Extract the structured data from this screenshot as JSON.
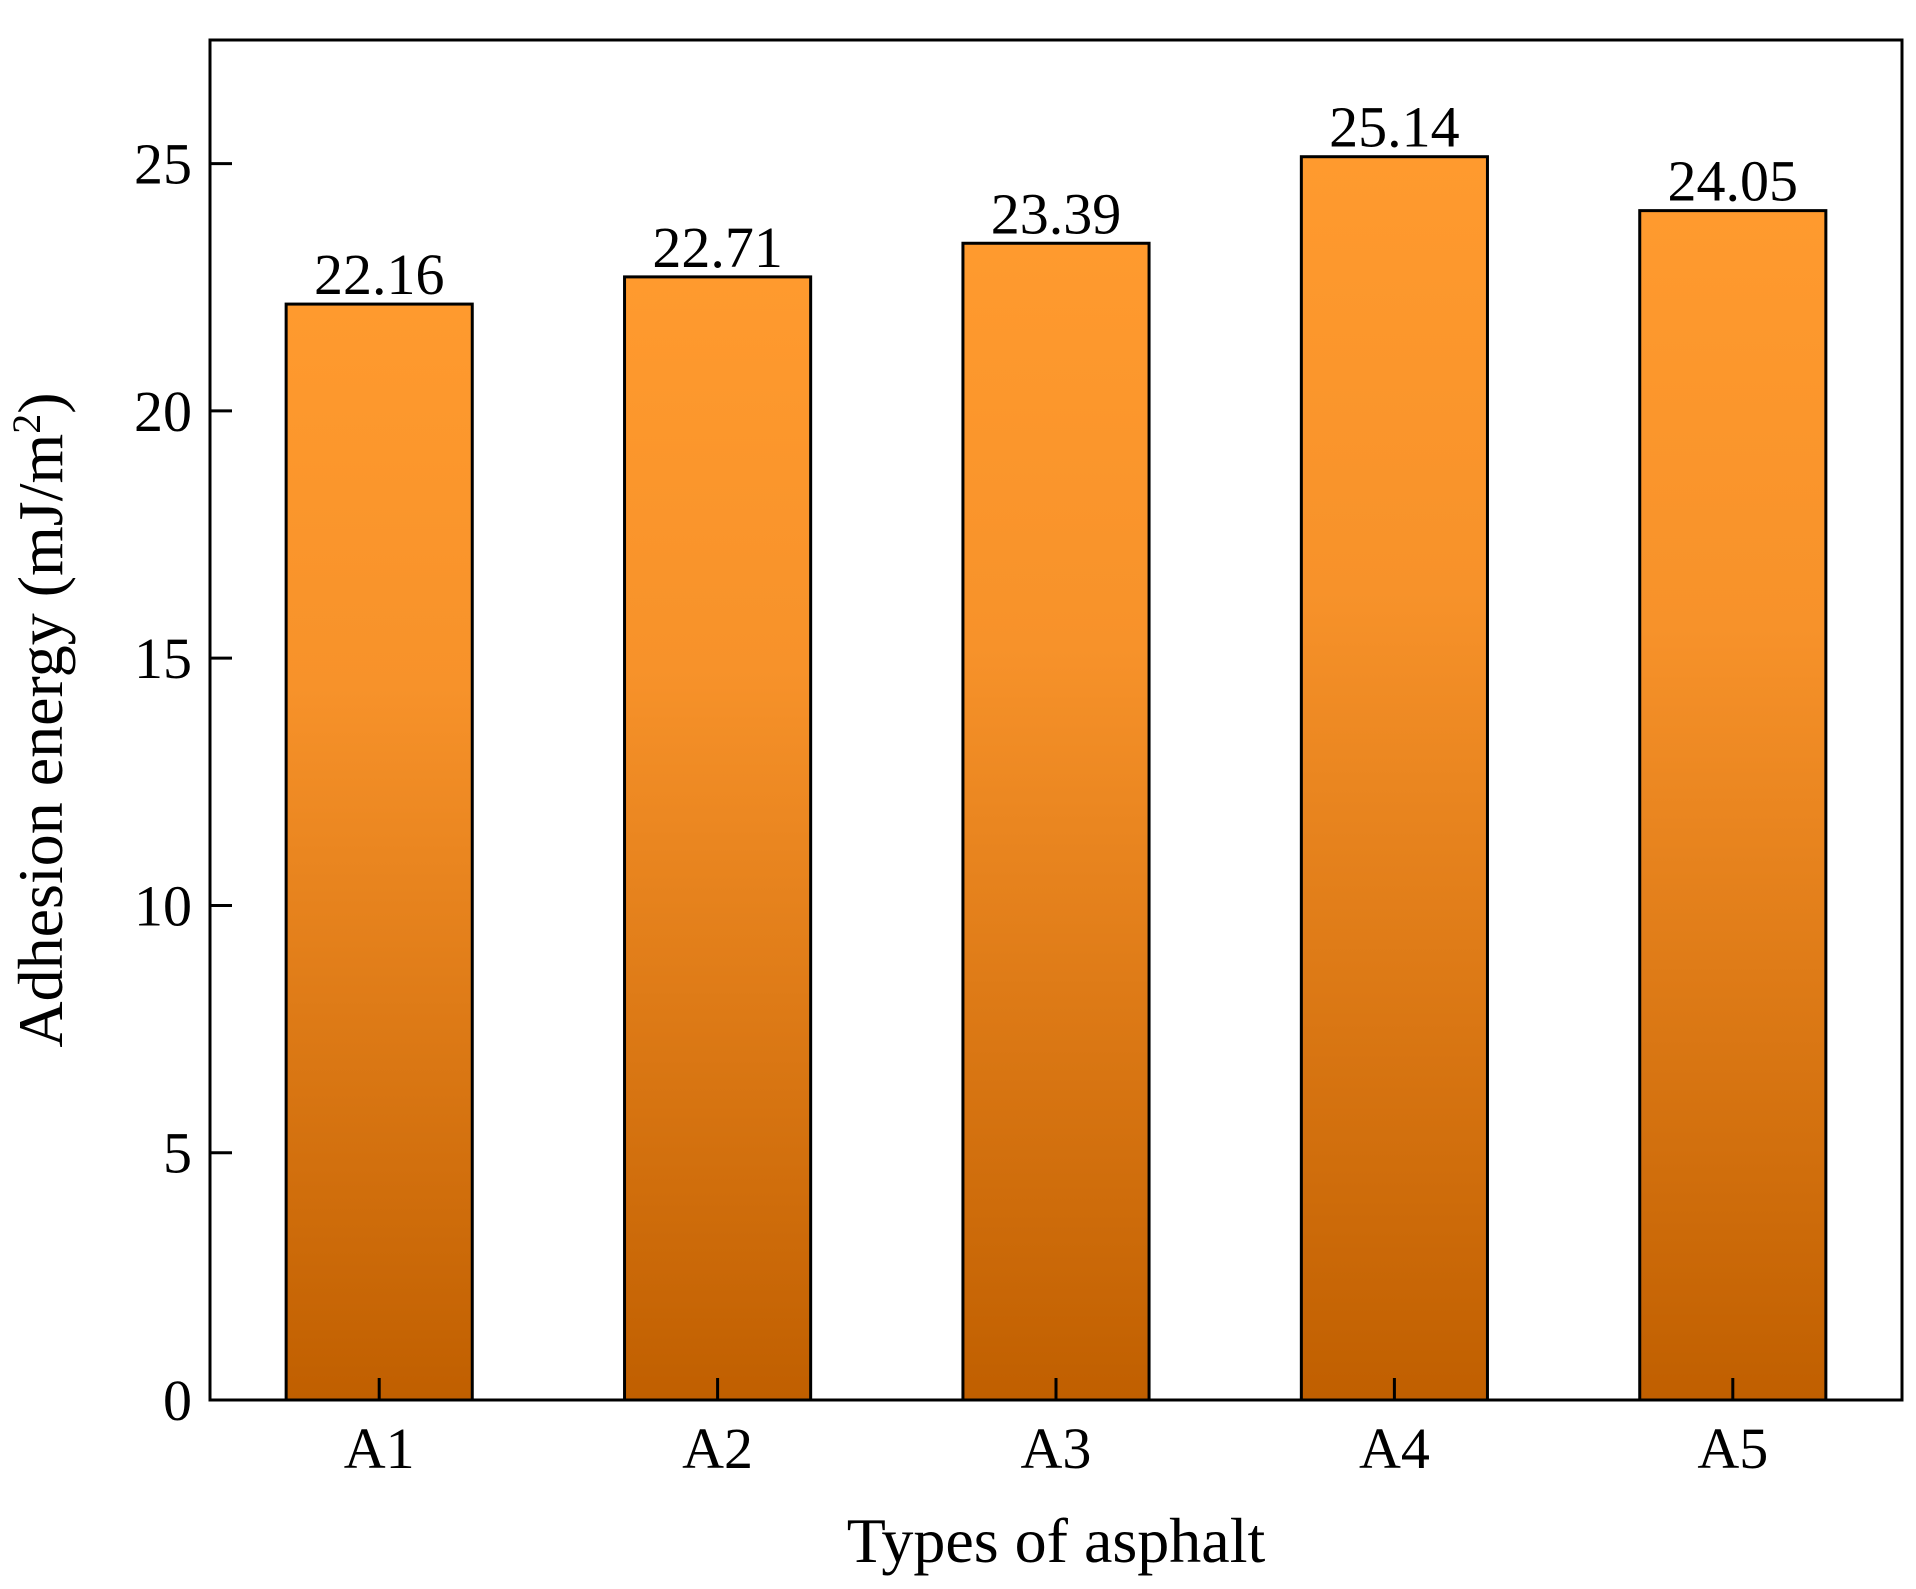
{
  "chart_data": {
    "type": "bar",
    "categories": [
      "A1",
      "A2",
      "A3",
      "A4",
      "A5"
    ],
    "values": [
      22.16,
      22.71,
      23.39,
      25.14,
      24.05
    ],
    "data_labels": [
      "22.16",
      "22.71",
      "23.39",
      "25.14",
      "24.05"
    ],
    "xlabel": "Types of asphalt",
    "ylabel": {
      "main": "Adhesion energy (mJ/m",
      "superscript": "2",
      "tail": ")"
    },
    "ylim": [
      0,
      27.5
    ],
    "yticks": [
      0,
      5,
      10,
      15,
      20,
      25
    ],
    "grid": false,
    "legend": "none",
    "bar_fill_top": "#ff9a2e",
    "bar_fill_bottom": "#c05f00",
    "bar_stroke": "#000000",
    "axis_color": "#000000"
  }
}
